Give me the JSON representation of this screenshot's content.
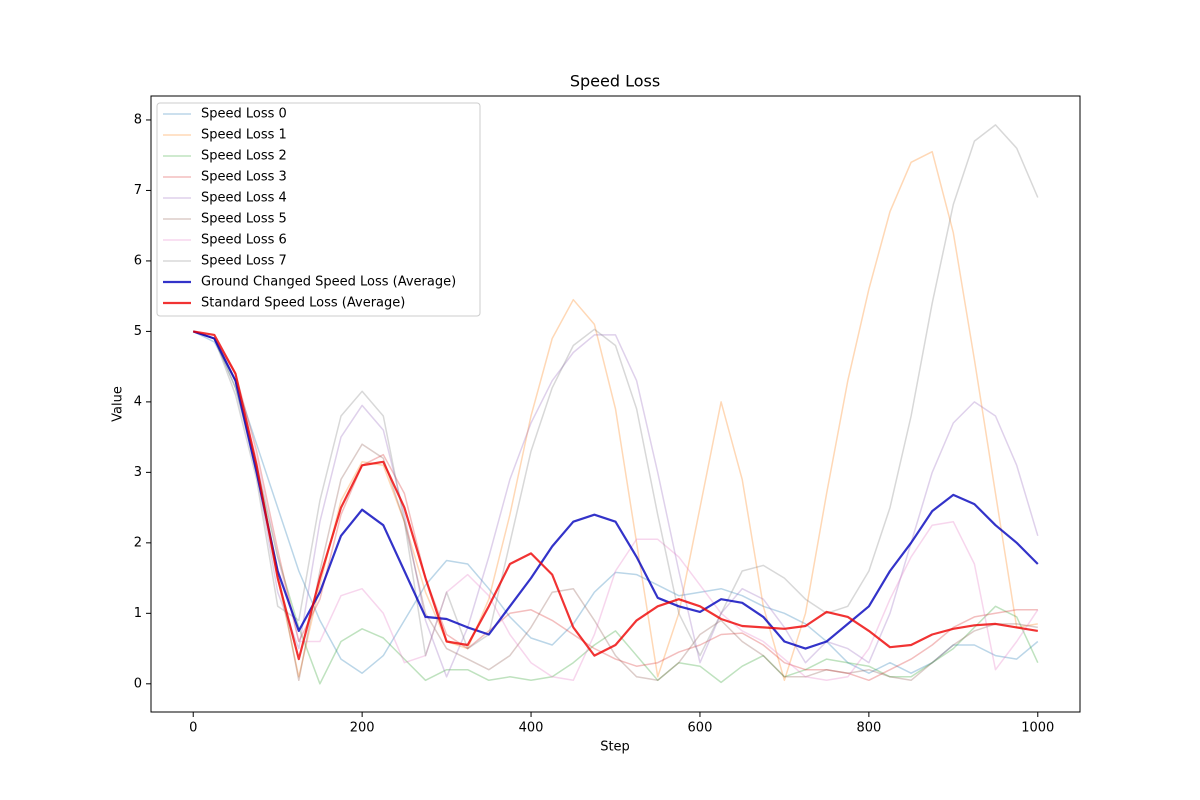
{
  "chart_data": {
    "type": "line",
    "title": "Speed Loss",
    "x_label": "Step",
    "y_label": "Value",
    "xlim": [
      -50,
      1050
    ],
    "ylim": [
      -0.4,
      8.34
    ],
    "xticks": [
      0,
      200,
      400,
      600,
      800,
      1000
    ],
    "yticks": [
      0,
      1,
      2,
      3,
      4,
      5,
      6,
      7,
      8
    ],
    "grid": false,
    "legend": "upper left",
    "x": [
      0,
      25,
      50,
      75,
      100,
      125,
      150,
      175,
      200,
      225,
      250,
      275,
      300,
      325,
      350,
      375,
      400,
      425,
      450,
      475,
      500,
      525,
      550,
      575,
      600,
      625,
      650,
      675,
      700,
      725,
      750,
      775,
      800,
      825,
      850,
      875,
      900,
      925,
      950,
      975,
      1000
    ],
    "series": [
      {
        "name": "Speed Loss 0",
        "color": "#1f77b44d",
        "values": [
          5,
          4.85,
          4.3,
          3.4,
          2.5,
          1.6,
          0.9,
          0.35,
          0.15,
          0.4,
          0.9,
          1.4,
          1.75,
          1.7,
          1.35,
          0.95,
          0.65,
          0.55,
          0.85,
          1.3,
          1.58,
          1.55,
          1.4,
          1.25,
          1.3,
          1.35,
          1.25,
          1.1,
          1.0,
          0.85,
          0.6,
          0.3,
          0.15,
          0.3,
          0.15,
          0.3,
          0.55,
          0.55,
          0.4,
          0.35,
          0.6
        ]
      },
      {
        "name": "Speed Loss 1",
        "color": "#ff7f0e4d",
        "values": [
          5,
          4.9,
          4.3,
          3.0,
          1.5,
          0.1,
          1.4,
          2.6,
          3.15,
          3.1,
          2.3,
          1.3,
          0.6,
          0.5,
          1.2,
          2.4,
          3.8,
          4.9,
          5.45,
          5.1,
          3.9,
          2.0,
          0.1,
          1.0,
          2.5,
          4.0,
          2.9,
          1.1,
          0.05,
          1.0,
          2.7,
          4.3,
          5.6,
          6.7,
          7.4,
          7.55,
          6.4,
          4.6,
          2.7,
          0.8,
          0.85
        ]
      },
      {
        "name": "Speed Loss 2",
        "color": "#2ca02c4d",
        "values": [
          5,
          4.9,
          4.2,
          3.1,
          1.8,
          0.8,
          0.0,
          0.6,
          0.78,
          0.65,
          0.35,
          0.05,
          0.2,
          0.2,
          0.05,
          0.1,
          0.05,
          0.1,
          0.3,
          0.55,
          0.75,
          0.4,
          0.05,
          0.3,
          0.25,
          0.02,
          0.25,
          0.4,
          0.1,
          0.2,
          0.35,
          0.3,
          0.25,
          0.1,
          0.1,
          0.3,
          0.5,
          0.8,
          1.1,
          0.95,
          0.3
        ]
      },
      {
        "name": "Speed Loss 3",
        "color": "#d627284d",
        "values": [
          5,
          4.9,
          4.4,
          3.3,
          1.9,
          0.6,
          1.2,
          2.4,
          3.1,
          3.25,
          2.7,
          1.5,
          0.7,
          0.5,
          0.75,
          1.0,
          1.05,
          0.9,
          0.7,
          0.5,
          0.35,
          0.25,
          0.3,
          0.45,
          0.55,
          0.7,
          0.72,
          0.55,
          0.3,
          0.2,
          0.2,
          0.15,
          0.05,
          0.2,
          0.35,
          0.55,
          0.8,
          0.95,
          1.0,
          1.05,
          1.05
        ]
      },
      {
        "name": "Speed Loss 4",
        "color": "#9467bd4d",
        "values": [
          5,
          4.9,
          4.2,
          3.0,
          1.3,
          0.5,
          2.3,
          3.5,
          3.95,
          3.6,
          2.4,
          0.9,
          0.1,
          0.8,
          1.8,
          2.9,
          3.7,
          4.3,
          4.7,
          4.95,
          4.95,
          4.3,
          3.0,
          1.6,
          0.3,
          1.0,
          1.35,
          1.2,
          0.8,
          0.3,
          0.6,
          0.5,
          0.3,
          1.0,
          2.0,
          3.0,
          3.7,
          4.0,
          3.8,
          3.1,
          2.1
        ]
      },
      {
        "name": "Speed Loss 5",
        "color": "#8c564b4d",
        "values": [
          5,
          4.9,
          4.3,
          3.1,
          1.6,
          0.05,
          1.6,
          2.9,
          3.4,
          3.2,
          2.3,
          1.0,
          0.5,
          0.35,
          0.2,
          0.4,
          0.8,
          1.3,
          1.35,
          0.9,
          0.4,
          0.1,
          0.05,
          0.3,
          0.7,
          0.9,
          0.6,
          0.4,
          0.1,
          0.1,
          0.2,
          0.15,
          0.2,
          0.1,
          0.05,
          0.3,
          0.55,
          0.75,
          0.85,
          0.85,
          0.8
        ]
      },
      {
        "name": "Speed Loss 6",
        "color": "#e377c24d",
        "values": [
          5,
          4.9,
          4.3,
          3.2,
          1.8,
          0.6,
          0.6,
          1.25,
          1.35,
          1.0,
          0.3,
          0.4,
          1.3,
          1.55,
          1.25,
          0.7,
          0.3,
          0.1,
          0.05,
          0.7,
          1.6,
          2.05,
          2.05,
          1.8,
          1.4,
          1.0,
          0.75,
          0.6,
          0.35,
          0.1,
          0.05,
          0.1,
          0.5,
          1.2,
          1.8,
          2.25,
          2.3,
          1.7,
          0.2,
          0.6,
          1.05
        ]
      },
      {
        "name": "Speed Loss 7",
        "color": "#7f7f7f4d",
        "values": [
          5,
          4.9,
          4.1,
          2.9,
          1.1,
          0.9,
          2.6,
          3.8,
          4.15,
          3.8,
          2.3,
          0.4,
          1.3,
          0.5,
          0.7,
          2.0,
          3.3,
          4.2,
          4.8,
          5.03,
          4.8,
          3.9,
          2.4,
          1.0,
          0.4,
          1.0,
          1.6,
          1.68,
          1.5,
          1.2,
          1.0,
          1.1,
          1.6,
          2.5,
          3.8,
          5.4,
          6.8,
          7.7,
          7.93,
          7.6,
          6.9
        ]
      },
      {
        "name": "Ground Changed Speed Loss (Average)",
        "color": "#0000bbcc",
        "values": [
          5,
          4.9,
          4.3,
          3.0,
          1.6,
          0.75,
          1.3,
          2.1,
          2.47,
          2.25,
          1.6,
          0.95,
          0.92,
          0.8,
          0.7,
          1.1,
          1.5,
          1.95,
          2.3,
          2.4,
          2.3,
          1.8,
          1.22,
          1.1,
          1.02,
          1.2,
          1.15,
          0.95,
          0.6,
          0.5,
          0.6,
          0.85,
          1.1,
          1.6,
          2.0,
          2.45,
          2.68,
          2.55,
          2.25,
          2.0,
          1.7
        ]
      },
      {
        "name": "Standard Speed Loss (Average)",
        "color": "#ee0000cc",
        "values": [
          5,
          4.95,
          4.4,
          3.1,
          1.5,
          0.35,
          1.5,
          2.5,
          3.1,
          3.15,
          2.5,
          1.5,
          0.6,
          0.55,
          1.1,
          1.7,
          1.85,
          1.55,
          0.8,
          0.4,
          0.55,
          0.9,
          1.1,
          1.2,
          1.1,
          0.92,
          0.82,
          0.8,
          0.78,
          0.82,
          1.02,
          0.95,
          0.75,
          0.52,
          0.55,
          0.7,
          0.78,
          0.83,
          0.85,
          0.8,
          0.75
        ]
      }
    ]
  }
}
